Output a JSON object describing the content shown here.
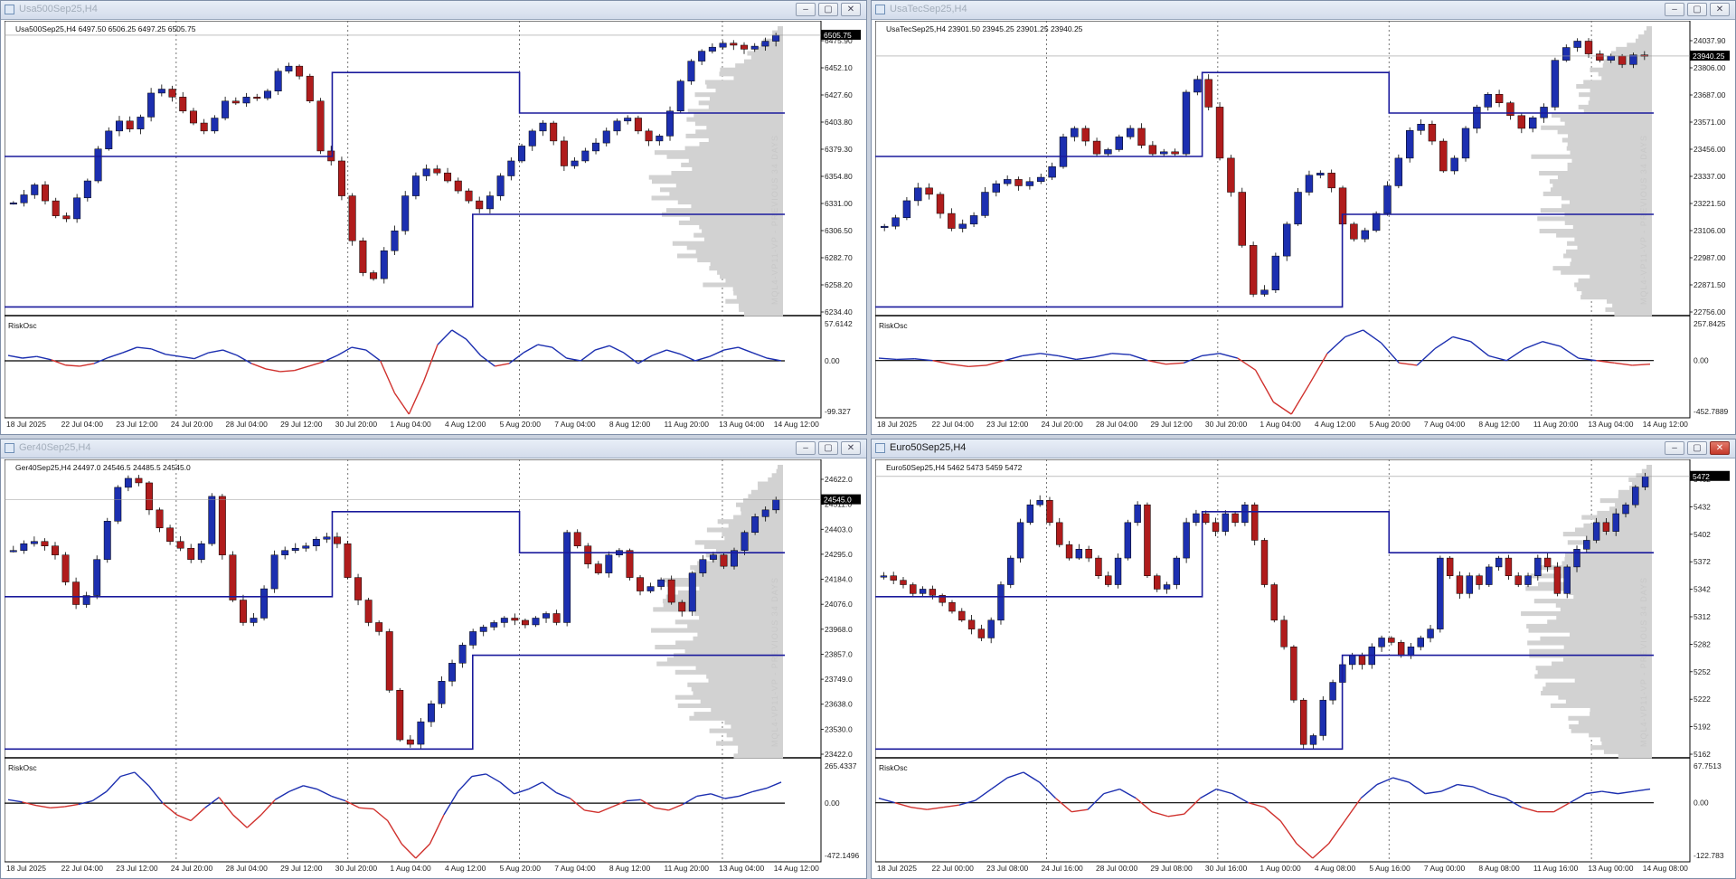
{
  "windows": [
    {
      "key": "usa500",
      "title": "Usa500Sep25,H4",
      "active": false,
      "close_red": false,
      "symbol_line": "Usa500Sep25,H4  6497.50 6506.25 6497.25 6505.75",
      "price_ticks": [
        "6475.90",
        "6452.10",
        "6427.60",
        "6403.80",
        "6379.30",
        "6354.80",
        "6331.00",
        "6306.50",
        "6282.70",
        "6258.20",
        "6234.40"
      ],
      "current_price": "6505.75",
      "osc_label": "RiskOsc",
      "osc_ticks": [
        "57.6142",
        "0.00",
        "-99.327"
      ],
      "date_ticks": [
        "18 Jul 2025",
        "22 Jul 04:00",
        "23 Jul 12:00",
        "24 Jul 20:00",
        "28 Jul 04:00",
        "29 Jul 12:00",
        "30 Jul 20:00",
        "1 Aug 04:00",
        "4 Aug 12:00",
        "5 Aug 20:00",
        "7 Aug 04:00",
        "8 Aug 12:00",
        "11 Aug 20:00",
        "13 Aug 04:00",
        "14 Aug 12:00"
      ],
      "vp_label": "MQL4-VP11-VP - PREVIOUS 34 DAYS",
      "chart_data": {
        "type": "candlestick",
        "ylim": [
          6225,
          6515
        ],
        "closes": [
          6338,
          6346,
          6356,
          6340,
          6325,
          6322,
          6343,
          6360,
          6392,
          6410,
          6420,
          6412,
          6424,
          6448,
          6452,
          6444,
          6430,
          6418,
          6410,
          6423,
          6440,
          6438,
          6444,
          6443,
          6450,
          6470,
          6475,
          6465,
          6440,
          6390,
          6380,
          6345,
          6300,
          6268,
          6262,
          6290,
          6310,
          6345,
          6365,
          6372,
          6368,
          6360,
          6350,
          6340,
          6332,
          6345,
          6365,
          6380,
          6395,
          6410,
          6418,
          6400,
          6375,
          6380,
          6390,
          6398,
          6410,
          6420,
          6423,
          6410,
          6400,
          6405,
          6430,
          6460,
          6480,
          6490,
          6494,
          6498,
          6496,
          6492,
          6495,
          6500,
          6506
        ],
        "risk_osc": [
          10,
          5,
          8,
          2,
          -8,
          -10,
          -5,
          6,
          15,
          25,
          22,
          12,
          8,
          4,
          15,
          20,
          10,
          -5,
          -15,
          -20,
          -18,
          -10,
          -2,
          10,
          25,
          20,
          0,
          -60,
          -99,
          -40,
          30,
          57,
          40,
          10,
          -10,
          -5,
          15,
          30,
          25,
          5,
          0,
          20,
          28,
          15,
          -5,
          10,
          20,
          12,
          0,
          8,
          20,
          25,
          15,
          5,
          0
        ]
      }
    },
    {
      "key": "usatec",
      "title": "UsaTecSep25,H4",
      "active": false,
      "close_red": false,
      "symbol_line": "UsaTecSep25,H4  23901.50 23945.25 23901.25 23940.25",
      "price_ticks": [
        "24037.90",
        "23806.00",
        "23687.00",
        "23571.00",
        "23456.00",
        "23337.00",
        "23221.50",
        "23106.00",
        "22987.00",
        "22871.50",
        "22756.00"
      ],
      "current_price": "23940.25",
      "osc_label": "RiskOsc",
      "osc_ticks": [
        "257.8425",
        "0.00",
        "-452.7889"
      ],
      "date_ticks": [
        "18 Jul 2025",
        "22 Jul 04:00",
        "23 Jul 12:00",
        "24 Jul 20:00",
        "28 Jul 04:00",
        "29 Jul 12:00",
        "30 Jul 20:00",
        "1 Aug 04:00",
        "4 Aug 12:00",
        "5 Aug 20:00",
        "7 Aug 04:00",
        "8 Aug 12:00",
        "11 Aug 20:00",
        "13 Aug 04:00",
        "14 Aug 12:00"
      ],
      "vp_label": "MQL4-VP11-VP - PREVIOUS 34 DAYS",
      "chart_data": {
        "type": "candlestick",
        "ylim": [
          22720,
          24080
        ],
        "closes": [
          23140,
          23180,
          23260,
          23320,
          23290,
          23200,
          23130,
          23150,
          23190,
          23300,
          23340,
          23360,
          23330,
          23350,
          23370,
          23420,
          23560,
          23600,
          23540,
          23480,
          23500,
          23560,
          23600,
          23520,
          23480,
          23490,
          23480,
          23770,
          23830,
          23700,
          23460,
          23300,
          23050,
          22820,
          22840,
          23000,
          23150,
          23300,
          23380,
          23390,
          23320,
          23150,
          23080,
          23120,
          23200,
          23330,
          23460,
          23590,
          23620,
          23540,
          23400,
          23460,
          23600,
          23700,
          23760,
          23720,
          23660,
          23600,
          23650,
          23700,
          23920,
          23980,
          24010,
          23950,
          23920,
          23940,
          23900,
          23945,
          23940
        ],
        "risk_osc": [
          20,
          10,
          15,
          0,
          -30,
          -50,
          -40,
          0,
          40,
          60,
          40,
          10,
          30,
          60,
          50,
          0,
          -30,
          -20,
          40,
          60,
          20,
          -80,
          -350,
          -452,
          -200,
          60,
          200,
          257,
          150,
          -20,
          -40,
          100,
          200,
          160,
          40,
          0,
          100,
          160,
          120,
          20,
          0,
          -20,
          -40,
          -30
        ]
      }
    },
    {
      "key": "ger40",
      "title": "Ger40Sep25,H4",
      "active": false,
      "close_red": false,
      "symbol_line": "Ger40Sep25,H4  24497.0 24546.5 24485.5 24545.0",
      "price_ticks": [
        "24622.0",
        "24511.0",
        "24403.0",
        "24295.0",
        "24184.0",
        "24076.0",
        "23968.0",
        "23857.0",
        "23749.0",
        "23638.0",
        "23530.0",
        "23422.0"
      ],
      "current_price": "24545.0",
      "osc_label": "RiskOsc",
      "osc_ticks": [
        "265.4337",
        "0.00",
        "-472.1496"
      ],
      "date_ticks": [
        "18 Jul 2025",
        "22 Jul 04:00",
        "23 Jul 12:00",
        "24 Jul 20:00",
        "28 Jul 04:00",
        "29 Jul 12:00",
        "30 Jul 20:00",
        "1 Aug 04:00",
        "4 Aug 12:00",
        "5 Aug 20:00",
        "7 Aug 04:00",
        "8 Aug 12:00",
        "11 Aug 20:00",
        "13 Aug 04:00",
        "14 Aug 12:00"
      ],
      "vp_label": "MQL4-VP11-VP - PREVIOUS 34 DAYS",
      "chart_data": {
        "type": "candlestick",
        "ylim": [
          23400,
          24700
        ],
        "closes": [
          24320,
          24350,
          24360,
          24340,
          24300,
          24180,
          24080,
          24120,
          24280,
          24450,
          24600,
          24640,
          24620,
          24500,
          24420,
          24360,
          24330,
          24280,
          24350,
          24560,
          24300,
          24100,
          24000,
          24020,
          24150,
          24300,
          24320,
          24330,
          24340,
          24370,
          24380,
          24350,
          24200,
          24100,
          24000,
          23960,
          23700,
          23480,
          23460,
          23560,
          23640,
          23740,
          23820,
          23900,
          23960,
          23980,
          24000,
          24020,
          24010,
          23990,
          24020,
          24040,
          24000,
          24400,
          24340,
          24260,
          24220,
          24300,
          24320,
          24200,
          24140,
          24160,
          24190,
          24090,
          24050,
          24220,
          24280,
          24300,
          24250,
          24320,
          24400,
          24470,
          24500,
          24545
        ],
        "risk_osc": [
          30,
          10,
          -20,
          -40,
          -30,
          -10,
          20,
          100,
          230,
          265,
          150,
          0,
          -100,
          -150,
          -40,
          50,
          -100,
          -210,
          -100,
          30,
          100,
          150,
          120,
          60,
          20,
          -40,
          -50,
          -150,
          -350,
          -472,
          -350,
          -100,
          100,
          230,
          250,
          180,
          80,
          120,
          180,
          90,
          40,
          -60,
          -80,
          -30,
          20,
          30,
          -40,
          -60,
          -10,
          60,
          80,
          40,
          60,
          100,
          130,
          180
        ]
      }
    },
    {
      "key": "euro50",
      "title": "Euro50Sep25,H4",
      "active": true,
      "close_red": true,
      "symbol_line": "Euro50Sep25,H4  5462 5473 5459 5472",
      "price_ticks": [
        "5462",
        "5432",
        "5402",
        "5372",
        "5342",
        "5312",
        "5282",
        "5252",
        "5222",
        "5192",
        "5162"
      ],
      "current_price": "5472",
      "osc_label": "RiskOsc",
      "osc_ticks": [
        "67.7513",
        "0.00",
        "-122.783"
      ],
      "date_ticks": [
        "18 Jul 2025",
        "22 Jul 00:00",
        "23 Jul 08:00",
        "24 Jul 16:00",
        "28 Jul 00:00",
        "29 Jul 08:00",
        "30 Jul 16:00",
        "1 Aug 00:00",
        "4 Aug 08:00",
        "5 Aug 16:00",
        "7 Aug 00:00",
        "8 Aug 08:00",
        "11 Aug 16:00",
        "13 Aug 00:00",
        "14 Aug 08:00"
      ],
      "vp_label": "MQL4-VP11-VP - PREVIOUS 34 DAYS",
      "chart_data": {
        "type": "candlestick",
        "ylim": [
          5155,
          5485
        ],
        "closes": [
          5360,
          5355,
          5350,
          5340,
          5345,
          5338,
          5330,
          5320,
          5310,
          5300,
          5290,
          5310,
          5350,
          5380,
          5420,
          5440,
          5445,
          5420,
          5395,
          5380,
          5390,
          5380,
          5360,
          5350,
          5380,
          5420,
          5440,
          5360,
          5345,
          5350,
          5380,
          5420,
          5430,
          5420,
          5410,
          5430,
          5420,
          5440,
          5400,
          5350,
          5310,
          5280,
          5220,
          5170,
          5180,
          5220,
          5240,
          5260,
          5270,
          5260,
          5280,
          5290,
          5285,
          5270,
          5280,
          5290,
          5300,
          5380,
          5360,
          5340,
          5360,
          5350,
          5370,
          5380,
          5360,
          5350,
          5360,
          5380,
          5370,
          5340,
          5370,
          5390,
          5400,
          5420,
          5410,
          5430,
          5440,
          5460,
          5472
        ],
        "risk_osc": [
          10,
          0,
          -10,
          -15,
          -10,
          -5,
          5,
          30,
          55,
          67,
          45,
          10,
          -20,
          -15,
          20,
          30,
          10,
          -20,
          -30,
          -25,
          10,
          30,
          20,
          0,
          -10,
          -40,
          -90,
          -122,
          -90,
          -40,
          10,
          40,
          55,
          45,
          20,
          25,
          40,
          35,
          20,
          10,
          -10,
          -20,
          -20,
          0,
          20,
          25,
          20,
          25,
          30
        ]
      }
    }
  ]
}
